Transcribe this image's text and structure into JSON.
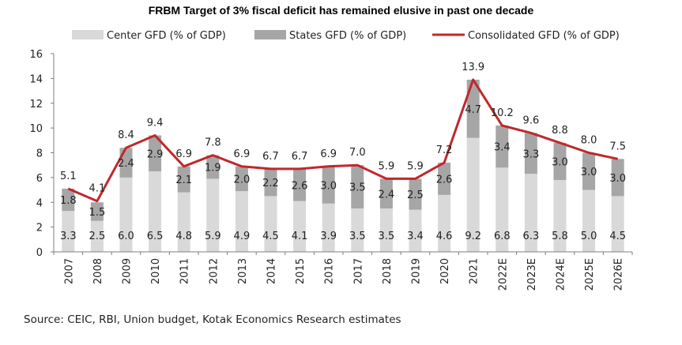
{
  "chart_data": {
    "type": "bar",
    "title": "FRBM Target of 3% fiscal deficit has remained elusive in past one decade",
    "categories": [
      "2007",
      "2008",
      "2009",
      "2010",
      "2011",
      "2012",
      "2013",
      "2014",
      "2015",
      "2016",
      "2017",
      "2018",
      "2019",
      "2020",
      "2021",
      "2022E",
      "2023E",
      "2024E",
      "2025E",
      "2026E"
    ],
    "series": [
      {
        "name": "Center GFD (% of GDP)",
        "kind": "bar-stacked",
        "color": "#d9d9d9",
        "values": [
          3.3,
          2.5,
          6.0,
          6.5,
          4.8,
          5.9,
          4.9,
          4.5,
          4.1,
          3.9,
          3.5,
          3.5,
          3.4,
          4.6,
          9.2,
          6.8,
          6.3,
          5.8,
          5.0,
          4.5
        ],
        "labels": [
          "3.3",
          "2.5",
          "6.0",
          "6.5",
          "4.8",
          "5.9",
          "4.9",
          "4.5",
          "4.1",
          "3.9",
          "3.5",
          "3.5",
          "3.4",
          "4.6",
          "9.2",
          "6.8",
          "6.3",
          "5.8",
          "5.0",
          "4.5"
        ]
      },
      {
        "name": "States GFD (% of GDP)",
        "kind": "bar-stacked",
        "color": "#a6a6a6",
        "values": [
          1.8,
          1.5,
          2.4,
          2.9,
          2.1,
          1.9,
          2.0,
          2.2,
          2.6,
          3.0,
          3.5,
          2.4,
          2.5,
          2.6,
          4.7,
          3.4,
          3.3,
          3.0,
          3.0,
          3.0
        ],
        "labels": [
          "1.8",
          "1.5",
          "2.4",
          "2.9",
          "2.1",
          "1.9",
          "2.0",
          "2.2",
          "2.6",
          "3.0",
          "3.5",
          "2.4",
          "2.5",
          "2.6",
          "4.7",
          "3.4",
          "3.3",
          "3.0",
          "3.0",
          "3.0"
        ]
      },
      {
        "name": "Consolidated GFD (% of GDP)",
        "kind": "line",
        "color": "#c0282d",
        "values": [
          5.1,
          4.1,
          8.4,
          9.4,
          6.9,
          7.8,
          6.9,
          6.7,
          6.7,
          6.9,
          7.0,
          5.9,
          5.9,
          7.2,
          13.9,
          10.2,
          9.6,
          8.8,
          8.0,
          7.5
        ],
        "labels": [
          "5.1",
          "4.1",
          "8.4",
          "9.4",
          "6.9",
          "7.8",
          "6.9",
          "6.7",
          "6.7",
          "6.9",
          "7.0",
          "5.9",
          "5.9",
          "7.2",
          "13.9",
          "10.2",
          "9.6",
          "8.8",
          "8.0",
          "7.5"
        ]
      }
    ],
    "y_ticks": [
      "0",
      "2",
      "4",
      "6",
      "8",
      "10",
      "12",
      "14",
      "16"
    ],
    "ylim": [
      0,
      16
    ],
    "xlabel": "",
    "ylabel": "",
    "grid": false,
    "legend_position": "top"
  },
  "source_note": "Source: CEIC, RBI, Union budget, Kotak Economics Research estimates"
}
